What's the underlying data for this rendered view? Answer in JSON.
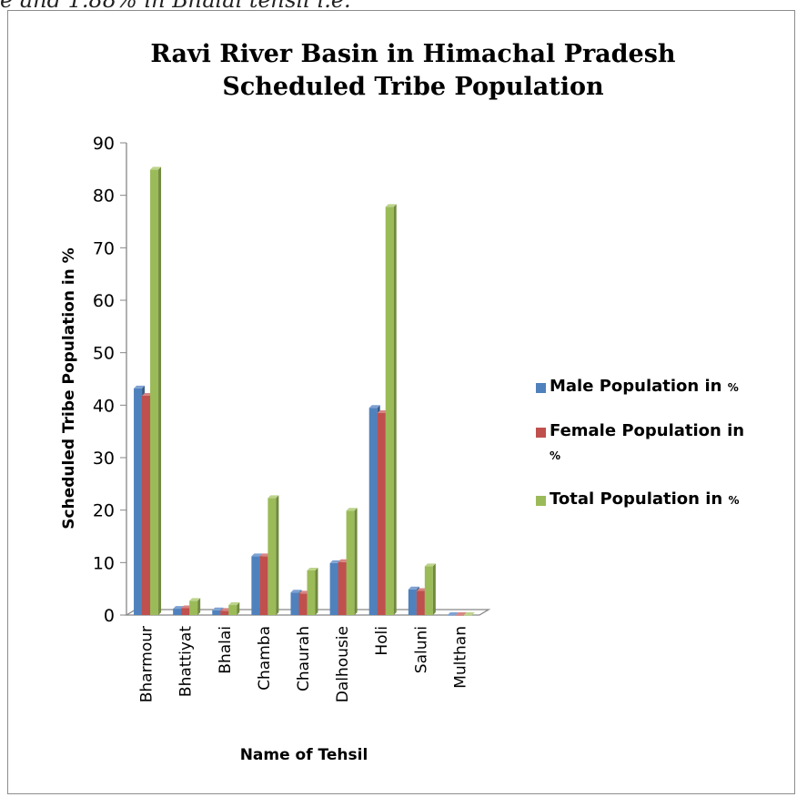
{
  "page": {
    "top_text": "e and 1.88% in Bhalai tehsil i.e."
  },
  "colors": {
    "male": "#4f81bd",
    "female": "#c0504d",
    "total": "#9bbb59",
    "axis": "#868686"
  },
  "chart_data": {
    "type": "bar",
    "title": [
      "Ravi River Basin in Himachal Pradesh",
      "Scheduled Tribe Population"
    ],
    "xlabel": "Name of Tehsil",
    "ylabel": "Scheduled Tribe Population in %",
    "ylim": [
      0,
      90
    ],
    "yticks": [
      0,
      10,
      20,
      30,
      40,
      50,
      60,
      70,
      80,
      90
    ],
    "categories": [
      "Bharmour",
      "Bhattiyat",
      "Bhalai",
      "Chamba",
      "Chaurah",
      "Dalhousie",
      "Holi",
      "Saluni",
      "Multhan"
    ],
    "series": [
      {
        "name": "Male Population in %",
        "values": [
          43.2,
          1.2,
          0.9,
          11.2,
          4.3,
          9.9,
          39.5,
          4.9,
          0.0
        ]
      },
      {
        "name": "Female Population in %",
        "values": [
          41.8,
          1.3,
          0.8,
          11.2,
          4.1,
          10.1,
          38.5,
          4.6,
          0.0
        ]
      },
      {
        "name": "Total Population in %",
        "values": [
          84.9,
          2.7,
          1.9,
          22.3,
          8.5,
          19.9,
          77.8,
          9.3,
          0.0
        ]
      }
    ],
    "legend_position": "right",
    "grid": false
  },
  "legend_display": [
    {
      "main": "Male Population in ",
      "unit": "%"
    },
    {
      "main": "Female Population in",
      "unit": "%"
    },
    {
      "main": "Total Population in ",
      "unit": "%"
    }
  ]
}
